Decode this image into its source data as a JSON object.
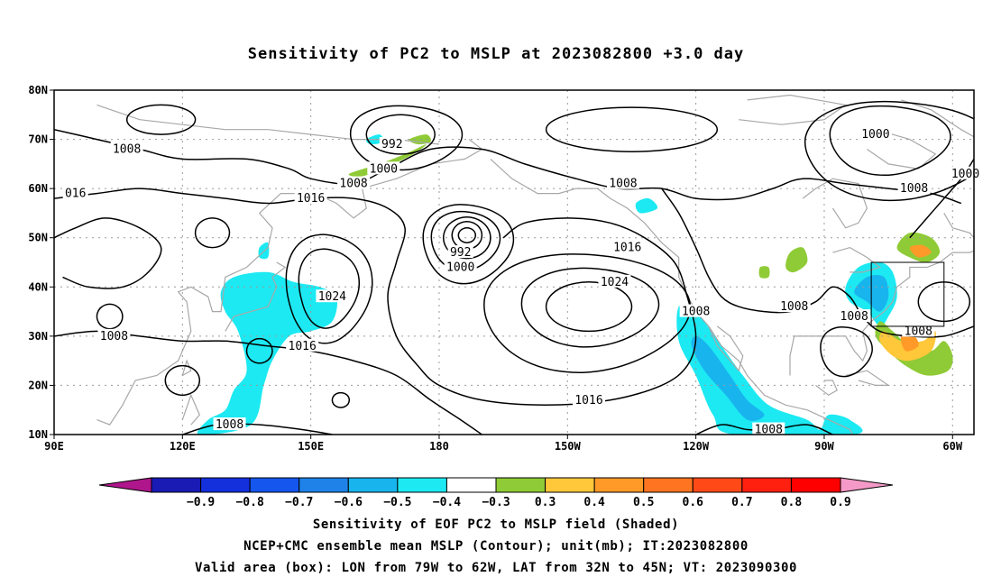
{
  "title": "Sensitivity of PC2 to MSLP at 2023082800 +3.0 day",
  "map": {
    "lon_range": [
      90,
      305
    ],
    "lat_range": [
      10,
      80
    ],
    "lat_ticks": [
      {
        "value": 80,
        "label": "80N"
      },
      {
        "value": 70,
        "label": "70N"
      },
      {
        "value": 60,
        "label": "60N"
      },
      {
        "value": 50,
        "label": "50N"
      },
      {
        "value": 40,
        "label": "40N"
      },
      {
        "value": 30,
        "label": "30N"
      },
      {
        "value": 20,
        "label": "20N"
      },
      {
        "value": 10,
        "label": "10N"
      }
    ],
    "lon_ticks": [
      {
        "value": 90,
        "label": "90E"
      },
      {
        "value": 120,
        "label": "120E"
      },
      {
        "value": 150,
        "label": "150E"
      },
      {
        "value": 180,
        "label": "180"
      },
      {
        "value": 210,
        "label": "150W"
      },
      {
        "value": 240,
        "label": "120W"
      },
      {
        "value": 270,
        "label": "90W"
      },
      {
        "value": 300,
        "label": "60W"
      }
    ],
    "valid_box": {
      "lon_min": 281,
      "lon_max": 298,
      "lat_min": 32,
      "lat_max": 45
    },
    "contour_labels": [
      {
        "text": "1008",
        "lon": 107,
        "lat": 68
      },
      {
        "text": "992",
        "lon": 169,
        "lat": 69
      },
      {
        "text": "1000",
        "lon": 167,
        "lat": 64
      },
      {
        "text": "1008",
        "lon": 160,
        "lat": 61
      },
      {
        "text": "016",
        "lon": 95,
        "lat": 59
      },
      {
        "text": "1016",
        "lon": 150,
        "lat": 58
      },
      {
        "text": "1008",
        "lon": 223,
        "lat": 61
      },
      {
        "text": "1000",
        "lon": 282,
        "lat": 71
      },
      {
        "text": "1000",
        "lon": 303,
        "lat": 63
      },
      {
        "text": "1008",
        "lon": 291,
        "lat": 60
      },
      {
        "text": "992",
        "lon": 185,
        "lat": 47
      },
      {
        "text": "1000",
        "lon": 185,
        "lat": 44
      },
      {
        "text": "1016",
        "lon": 224,
        "lat": 48
      },
      {
        "text": "1024",
        "lon": 221,
        "lat": 41
      },
      {
        "text": "1024",
        "lon": 155,
        "lat": 38
      },
      {
        "text": "1008",
        "lon": 240,
        "lat": 35
      },
      {
        "text": "1008",
        "lon": 263,
        "lat": 36
      },
      {
        "text": "1008",
        "lon": 277,
        "lat": 34
      },
      {
        "text": "1008",
        "lon": 292,
        "lat": 31
      },
      {
        "text": "1008",
        "lon": 104,
        "lat": 30
      },
      {
        "text": "1016",
        "lon": 148,
        "lat": 28
      },
      {
        "text": "1016",
        "lon": 215,
        "lat": 17
      },
      {
        "text": "1008",
        "lon": 131,
        "lat": 12
      },
      {
        "text": "1008",
        "lon": 257,
        "lat": 11
      }
    ],
    "colors": {
      "coast": "#a8a8a8",
      "contour": "#000000",
      "grid": "#9a9a9a",
      "cyan": "#1de9f2",
      "blue": "#18b4ee",
      "deep_blue": "#1f82e8",
      "green": "#8fcb36",
      "yellow": "#ffc73a",
      "orange": "#ff9a28"
    }
  },
  "colorbar": {
    "colors": [
      "#b0168c",
      "#1a1ab4",
      "#1330dc",
      "#1556ee",
      "#1f82e8",
      "#18b4ee",
      "#1de9f2",
      "#ffffff",
      "#8fcb36",
      "#ffc73a",
      "#ff9a28",
      "#ff7420",
      "#ff4a18",
      "#ff2010",
      "#ff0000",
      "#f59ac8"
    ],
    "labels": [
      "−0.9",
      "−0.8",
      "−0.7",
      "−0.6",
      "−0.5",
      "−0.4",
      "−0.3",
      "0.3",
      "0.4",
      "0.5",
      "0.6",
      "0.7",
      "0.8",
      "0.9"
    ]
  },
  "footer": {
    "line1": "Sensitivity of EOF PC2 to MSLP field (Shaded)",
    "line2": "NCEP+CMC ensemble mean MSLP (Contour); unit(mb); IT:2023082800",
    "line3": "Valid area (box): LON from 79W to 62W, LAT from 32N to 45N; VT: 2023090300"
  }
}
